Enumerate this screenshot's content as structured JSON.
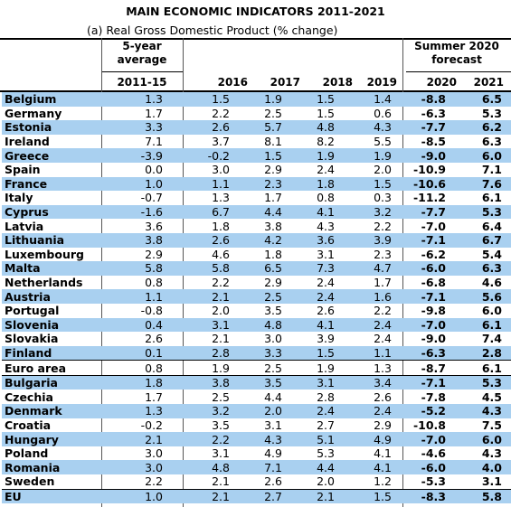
{
  "title": "MAIN ECONOMIC INDICATORS 2011-2021",
  "subtitle": "(a) Real Gross Domestic Product (% change)",
  "headers": {
    "avg_label": [
      "5-year",
      "average"
    ],
    "forecast_label": [
      "Summer 2020",
      "forecast"
    ],
    "years": [
      "2011-15",
      "2016",
      "2017",
      "2018",
      "2019",
      "2020",
      "2021"
    ]
  },
  "rows": [
    {
      "country": "Belgium",
      "values": [
        "1.3",
        "1.5",
        "1.9",
        "1.5",
        "1.4",
        "-8.8",
        "6.5"
      ]
    },
    {
      "country": "Germany",
      "values": [
        "1.7",
        "2.2",
        "2.5",
        "1.5",
        "0.6",
        "-6.3",
        "5.3"
      ]
    },
    {
      "country": "Estonia",
      "values": [
        "3.3",
        "2.6",
        "5.7",
        "4.8",
        "4.3",
        "-7.7",
        "6.2"
      ]
    },
    {
      "country": "Ireland",
      "values": [
        "7.1",
        "3.7",
        "8.1",
        "8.2",
        "5.5",
        "-8.5",
        "6.3"
      ]
    },
    {
      "country": "Greece",
      "values": [
        "-3.9",
        "-0.2",
        "1.5",
        "1.9",
        "1.9",
        "-9.0",
        "6.0"
      ]
    },
    {
      "country": "Spain",
      "values": [
        "0.0",
        "3.0",
        "2.9",
        "2.4",
        "2.0",
        "-10.9",
        "7.1"
      ]
    },
    {
      "country": "France",
      "values": [
        "1.0",
        "1.1",
        "2.3",
        "1.8",
        "1.5",
        "-10.6",
        "7.6"
      ]
    },
    {
      "country": "Italy",
      "values": [
        "-0.7",
        "1.3",
        "1.7",
        "0.8",
        "0.3",
        "-11.2",
        "6.1"
      ]
    },
    {
      "country": "Cyprus",
      "values": [
        "-1.6",
        "6.7",
        "4.4",
        "4.1",
        "3.2",
        "-7.7",
        "5.3"
      ]
    },
    {
      "country": "Latvia",
      "values": [
        "3.6",
        "1.8",
        "3.8",
        "4.3",
        "2.2",
        "-7.0",
        "6.4"
      ]
    },
    {
      "country": "Lithuania",
      "values": [
        "3.8",
        "2.6",
        "4.2",
        "3.6",
        "3.9",
        "-7.1",
        "6.7"
      ]
    },
    {
      "country": "Luxembourg",
      "values": [
        "2.9",
        "4.6",
        "1.8",
        "3.1",
        "2.3",
        "-6.2",
        "5.4"
      ]
    },
    {
      "country": "Malta",
      "values": [
        "5.8",
        "5.8",
        "6.5",
        "7.3",
        "4.7",
        "-6.0",
        "6.3"
      ]
    },
    {
      "country": "Netherlands",
      "values": [
        "0.8",
        "2.2",
        "2.9",
        "2.4",
        "1.7",
        "-6.8",
        "4.6"
      ]
    },
    {
      "country": "Austria",
      "values": [
        "1.1",
        "2.1",
        "2.5",
        "2.4",
        "1.6",
        "-7.1",
        "5.6"
      ]
    },
    {
      "country": "Portugal",
      "values": [
        "-0.8",
        "2.0",
        "3.5",
        "2.6",
        "2.2",
        "-9.8",
        "6.0"
      ]
    },
    {
      "country": "Slovenia",
      "values": [
        "0.4",
        "3.1",
        "4.8",
        "4.1",
        "2.4",
        "-7.0",
        "6.1"
      ]
    },
    {
      "country": "Slovakia",
      "values": [
        "2.6",
        "2.1",
        "3.0",
        "3.9",
        "2.4",
        "-9.0",
        "7.4"
      ]
    },
    {
      "country": "Finland",
      "values": [
        "0.1",
        "2.8",
        "3.3",
        "1.5",
        "1.1",
        "-6.3",
        "2.8"
      ]
    },
    {
      "country": "Euro area",
      "values": [
        "0.8",
        "1.9",
        "2.5",
        "1.9",
        "1.3",
        "-8.7",
        "6.1"
      ]
    },
    {
      "country": "Bulgaria",
      "values": [
        "1.8",
        "3.8",
        "3.5",
        "3.1",
        "3.4",
        "-7.1",
        "5.3"
      ]
    },
    {
      "country": "Czechia",
      "values": [
        "1.7",
        "2.5",
        "4.4",
        "2.8",
        "2.6",
        "-7.8",
        "4.5"
      ]
    },
    {
      "country": "Denmark",
      "values": [
        "1.3",
        "3.2",
        "2.0",
        "2.4",
        "2.4",
        "-5.2",
        "4.3"
      ]
    },
    {
      "country": "Croatia",
      "values": [
        "-0.2",
        "3.5",
        "3.1",
        "2.7",
        "2.9",
        "-10.8",
        "7.5"
      ]
    },
    {
      "country": "Hungary",
      "values": [
        "2.1",
        "2.2",
        "4.3",
        "5.1",
        "4.9",
        "-7.0",
        "6.0"
      ]
    },
    {
      "country": "Poland",
      "values": [
        "3.0",
        "3.1",
        "4.9",
        "5.3",
        "4.1",
        "-4.6",
        "4.3"
      ]
    },
    {
      "country": "Romania",
      "values": [
        "3.0",
        "4.8",
        "7.1",
        "4.4",
        "4.1",
        "-6.0",
        "4.0"
      ]
    },
    {
      "country": "Sweden",
      "values": [
        "2.2",
        "2.1",
        "2.6",
        "2.0",
        "1.2",
        "-5.3",
        "3.1"
      ]
    },
    {
      "country": "EU",
      "values": [
        "1.0",
        "2.1",
        "2.7",
        "2.1",
        "1.5",
        "-8.3",
        "5.8"
      ]
    }
  ],
  "colors": {
    "highlight": "#a9d0f0"
  }
}
